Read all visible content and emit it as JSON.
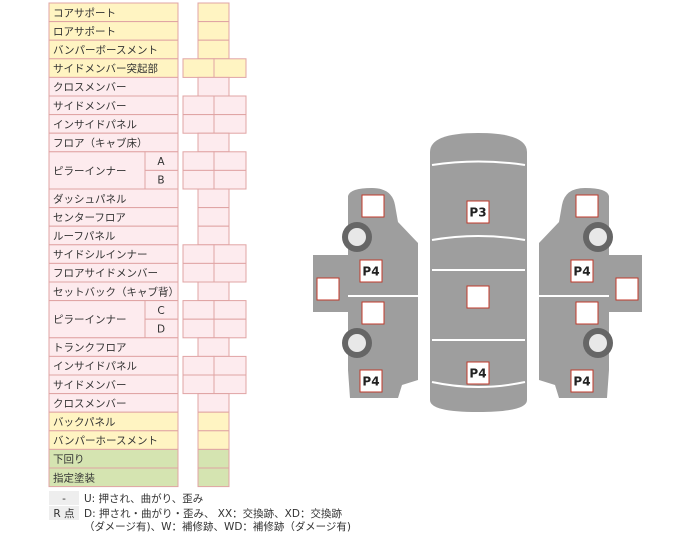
{
  "rows": [
    {
      "label": "コアサポート"
    },
    {
      "label": "ロアサポート"
    },
    {
      "label": "バンパーボースメント"
    },
    {
      "label": "サイドメンバー突起部"
    },
    {
      "label": "クロスメンバー"
    },
    {
      "label": "サイドメンバー"
    },
    {
      "label": "インサイドパネル"
    },
    {
      "label": "フロア（キャブ床）"
    },
    {
      "label": "ピラーインナー",
      "parts": [
        "A",
        "B"
      ]
    },
    {
      "label": "ダッシュパネル"
    },
    {
      "label": "センターフロア"
    },
    {
      "label": "ルーフパネル"
    },
    {
      "label": "サイドシルインナー"
    },
    {
      "label": "フロアサイドメンバー"
    },
    {
      "label": "セットバック（キャブ背）"
    },
    {
      "label": "ピラーインナー",
      "parts": [
        "C",
        "D"
      ]
    },
    {
      "label": "トランクフロア"
    },
    {
      "label": "インサイドパネル"
    },
    {
      "label": "サイドメンバー"
    },
    {
      "label": "クロスメンバー"
    },
    {
      "label": "バックパネル"
    },
    {
      "label": "バンパーホースメント"
    },
    {
      "label": "下回り"
    },
    {
      "label": "指定塗装"
    }
  ],
  "legend": [
    {
      "key": "-",
      "text": "U: 押され、曲がり、歪み"
    },
    {
      "key": "R 点",
      "text": "D: 押され・曲がり・歪み、 XX：交換跡、XD：交換跡"
    },
    {
      "key": "",
      "text": "（ダメージ有)、W：補修跡、WD：補修跡（ダメージ有)"
    }
  ],
  "car": {
    "center_top": "P3",
    "center_bottom": "P4",
    "left_front": "P4",
    "right_front": "P4",
    "left_rear": "P4",
    "right_rear": "P4"
  }
}
